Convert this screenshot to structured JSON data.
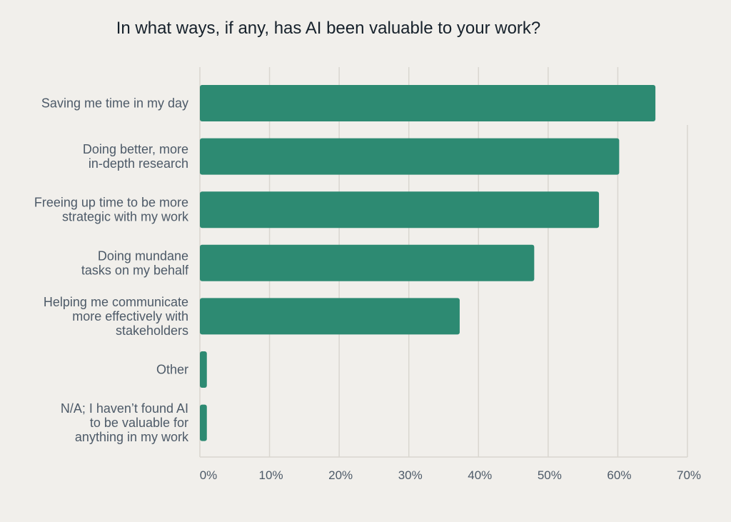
{
  "chart_data": {
    "type": "bar",
    "orientation": "horizontal",
    "title": "In what ways, if any, has AI been valuable to your work?",
    "categories": [
      [
        "Saving me time in my day"
      ],
      [
        "Doing better, more",
        "in-depth research"
      ],
      [
        "Freeing up time to be more",
        "strategic with my work"
      ],
      [
        "Doing mundane",
        "tasks on my behalf"
      ],
      [
        "Helping me communicate",
        "more effectively with",
        "stakeholders"
      ],
      [
        "Other"
      ],
      [
        "N/A; I haven’t found AI",
        "to be valuable for",
        "anything in my work"
      ]
    ],
    "values": [
      65.4,
      60.2,
      57.3,
      48.0,
      37.3,
      1.0,
      1.0
    ],
    "xlim": [
      0,
      70
    ],
    "xticks": [
      "0%",
      "10%",
      "20%",
      "30%",
      "40%",
      "50%",
      "60%",
      "70%"
    ],
    "bar_color": "#2d8a72",
    "grid": true,
    "legend": "none"
  }
}
